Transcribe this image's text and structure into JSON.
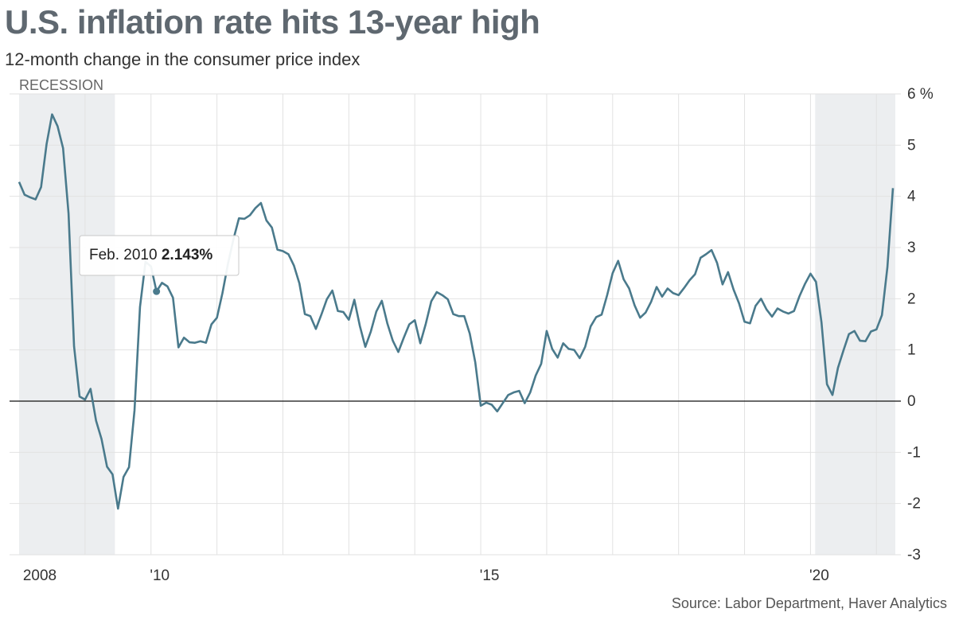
{
  "header": {
    "title": "U.S. inflation rate hits 13-year high",
    "subtitle": "12-month change in the consumer price index"
  },
  "footer": {
    "source": "Source: Labor Department, Haver Analytics"
  },
  "colors": {
    "line": "#4a7a8c",
    "recession": "#eceef0",
    "grid": "#e2e2e2",
    "zero": "#111111"
  },
  "chart_data": {
    "type": "line",
    "series": [
      {
        "x_start": "2008-01",
        "frequency": "monthly",
        "values": [
          4.28,
          4.03,
          3.98,
          3.94,
          4.18,
          5.02,
          5.6,
          5.37,
          4.94,
          3.66,
          1.07,
          0.09,
          0.03,
          0.24,
          -0.38,
          -0.74,
          -1.28,
          -1.43,
          -2.1,
          -1.48,
          -1.29,
          -0.18,
          1.84,
          2.72,
          2.63,
          2.143,
          2.31,
          2.24,
          2.02,
          1.05,
          1.24,
          1.15,
          1.14,
          1.17,
          1.14,
          1.5,
          1.63,
          2.11,
          2.68,
          3.16,
          3.57,
          3.56,
          3.63,
          3.77,
          3.87,
          3.53,
          3.39,
          2.96,
          2.93,
          2.87,
          2.65,
          2.3,
          1.7,
          1.66,
          1.41,
          1.69,
          1.99,
          2.16,
          1.76,
          1.74,
          1.59,
          1.98,
          1.47,
          1.06,
          1.36,
          1.75,
          1.96,
          1.52,
          1.18,
          0.96,
          1.24,
          1.5,
          1.58,
          1.13,
          1.51,
          1.95,
          2.13,
          2.07,
          1.99,
          1.7,
          1.66,
          1.66,
          1.32,
          0.76,
          -0.09,
          -0.03,
          -0.07,
          -0.2,
          -0.04,
          0.12,
          0.17,
          0.2,
          -0.04,
          0.17,
          0.5,
          0.73,
          1.37,
          1.02,
          0.85,
          1.13,
          1.02,
          1.0,
          0.84,
          1.06,
          1.46,
          1.64,
          1.69,
          2.07,
          2.5,
          2.74,
          2.38,
          2.2,
          1.87,
          1.63,
          1.73,
          1.94,
          2.23,
          2.04,
          2.2,
          2.11,
          2.07,
          2.21,
          2.36,
          2.48,
          2.8,
          2.87,
          2.95,
          2.7,
          2.28,
          2.52,
          2.18,
          1.91,
          1.55,
          1.52,
          1.86,
          2.0,
          1.79,
          1.65,
          1.81,
          1.75,
          1.71,
          1.76,
          2.05,
          2.29,
          2.49,
          2.33,
          1.54,
          0.33,
          0.12,
          0.65,
          0.99,
          1.31,
          1.37,
          1.18,
          1.17,
          1.36,
          1.4,
          1.68,
          2.62,
          4.16
        ]
      }
    ],
    "recessions": [
      [
        "2008-01",
        "2009-06"
      ],
      [
        "2020-02",
        "2021-04"
      ]
    ],
    "recession_label": "RECESSION",
    "ylim": [
      -3,
      6
    ],
    "y_ticks": [
      {
        "value": 6,
        "label": "6 %"
      },
      {
        "value": 5,
        "label": "5"
      },
      {
        "value": 4,
        "label": "4"
      },
      {
        "value": 3,
        "label": "3"
      },
      {
        "value": 2,
        "label": "2"
      },
      {
        "value": 1,
        "label": "1"
      },
      {
        "value": 0,
        "label": "0"
      },
      {
        "value": -1,
        "label": "-1"
      },
      {
        "value": -2,
        "label": "-2"
      },
      {
        "value": -3,
        "label": "-3"
      }
    ],
    "x_ticks": [
      {
        "date": "2008-01",
        "label": "2008"
      },
      {
        "date": "2010-01",
        "label": "'10"
      },
      {
        "date": "2015-01",
        "label": "'15"
      },
      {
        "date": "2020-01",
        "label": "'20"
      }
    ],
    "tooltip": {
      "date": "2010-02",
      "label": "Feb. 2010",
      "value_label": "2.143%"
    },
    "grid": true
  }
}
